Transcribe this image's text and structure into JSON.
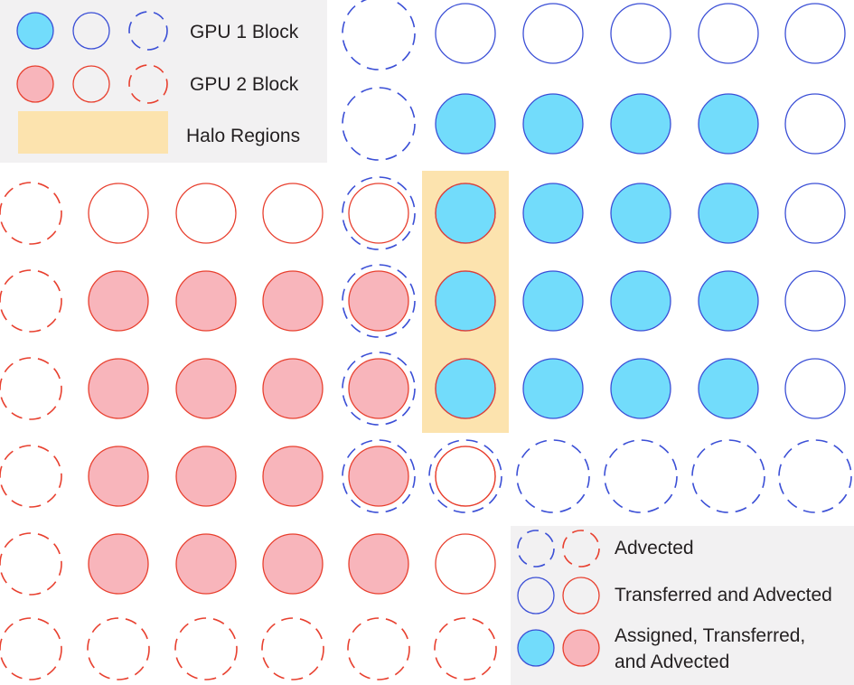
{
  "colors": {
    "gpu1_stroke": "#3b4fd6",
    "gpu1_fill": "#72dcfb",
    "gpu2_stroke": "#e8402f",
    "gpu2_fill": "#f8b5bb",
    "halo_fill": "#fce3ae",
    "legend_bg": "#f2f1f2"
  },
  "legend_top": {
    "gpu1_label": "GPU 1 Block",
    "gpu2_label": "GPU 2 Block",
    "halo_label": "Halo Regions"
  },
  "legend_bottom": {
    "advected_label": "Advected",
    "transferred_label": "Transferred and Advected",
    "assigned_label_line1": "Assigned, Transferred,",
    "assigned_label_line2": "and Advected"
  },
  "grid": {
    "columns": 10,
    "rows": 8,
    "gpu2_cells": [
      [
        "dashed",
        "outline",
        "outline",
        "outline",
        "outline",
        null,
        null,
        null,
        null,
        null
      ],
      [
        "dashed",
        "filled",
        "filled",
        "filled",
        "filled",
        null,
        null,
        null,
        null,
        null
      ],
      [
        "dashed",
        "filled",
        "filled",
        "filled",
        "filled",
        null,
        null,
        null,
        null,
        null
      ],
      [
        "dashed",
        "filled",
        "filled",
        "filled",
        "filled",
        "outline",
        null,
        null,
        null,
        null
      ],
      [
        "dashed",
        "filled",
        "filled",
        "filled",
        "filled",
        "outline",
        null,
        null,
        null,
        null
      ],
      [
        "dashed",
        "dashed",
        "dashed",
        "dashed",
        "dashed",
        "dashed",
        null,
        null,
        null,
        null
      ],
      [
        null,
        null,
        null,
        null,
        null,
        "outline-inner",
        null,
        null,
        null,
        null
      ],
      [
        null,
        null,
        null,
        null,
        null,
        null,
        null,
        null,
        null,
        null
      ]
    ],
    "gpu1_cells_by_row": [
      [
        null,
        null,
        null,
        null,
        "dashed",
        "outline",
        "outline",
        "outline",
        "outline",
        "outline"
      ],
      [
        null,
        null,
        null,
        null,
        "dashed",
        "filled",
        "filled",
        "filled",
        "filled",
        "outline"
      ],
      [
        null,
        null,
        null,
        null,
        "dashed",
        "filled",
        "filled",
        "filled",
        "filled",
        "outline"
      ],
      [
        null,
        null,
        null,
        null,
        "dashed",
        "filled",
        "filled",
        "filled",
        "filled",
        "outline"
      ],
      [
        null,
        null,
        null,
        null,
        "dashed",
        "filled",
        "filled",
        "filled",
        "filled",
        "outline"
      ],
      [
        null,
        null,
        null,
        null,
        "dashed",
        "dashed",
        "dashed",
        "dashed",
        "dashed",
        "dashed"
      ],
      [
        null,
        null,
        null,
        null,
        null,
        null,
        null,
        null,
        null,
        null
      ],
      [
        null,
        null,
        null,
        null,
        null,
        null,
        null,
        null,
        null,
        null
      ]
    ]
  }
}
